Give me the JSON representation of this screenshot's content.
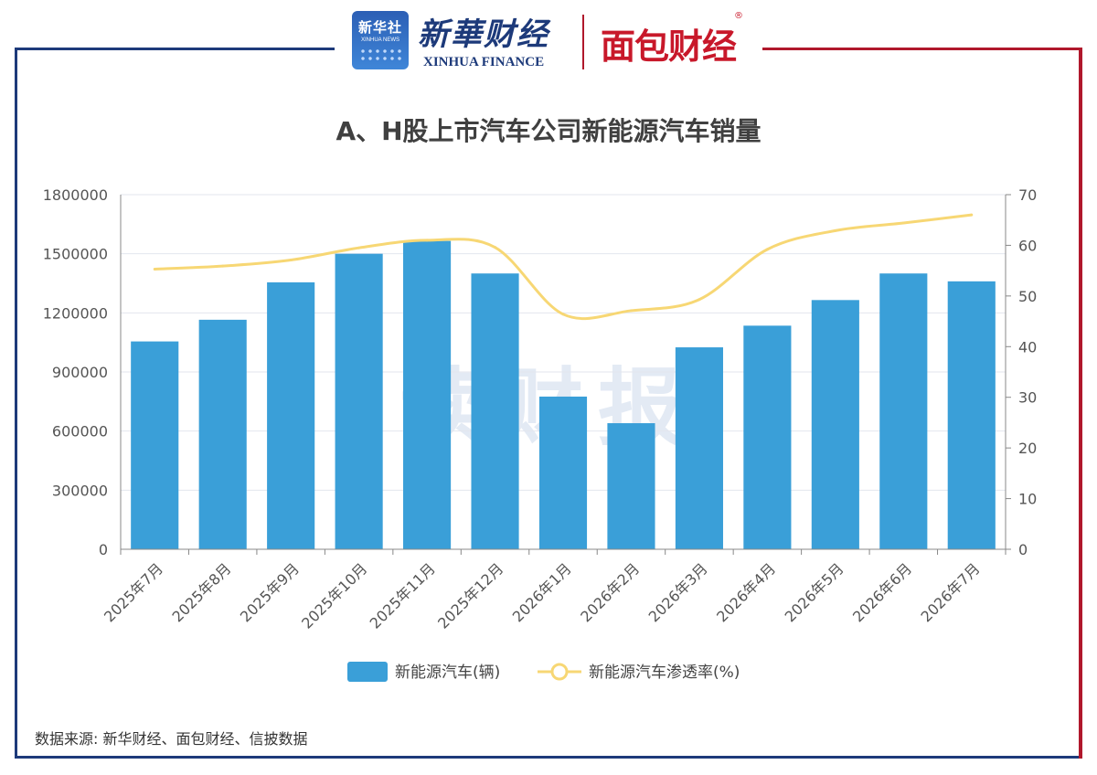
{
  "header": {
    "xinhua_badge_cn": "新华社",
    "xinhua_badge_en": "XINHUA NEWS",
    "xinhua_finance_cn": "新華财经",
    "xinhua_finance_en": "XINHUA FINANCE",
    "mianbao_logo": "面包财经",
    "registered_mark": "®"
  },
  "watermark": "读财报",
  "source": "数据来源: 新华财经、面包财经、信披数据",
  "colors": {
    "bar": "#3a9fd8",
    "line": "#f7d774",
    "frame_left": "#1d3a7a",
    "frame_right": "#b0182c"
  },
  "chart_data": {
    "type": "bar",
    "title": "A、H股上市汽车公司新能源汽车销量",
    "categories": [
      "2025年7月",
      "2025年8月",
      "2025年9月",
      "2025年10月",
      "2025年11月",
      "2025年12月",
      "2026年1月",
      "2026年2月",
      "2026年3月",
      "2026年4月",
      "2026年5月",
      "2026年6月",
      "2026年7月"
    ],
    "series": [
      {
        "name": "新能源汽车(辆)",
        "type": "bar",
        "axis": "left",
        "values": [
          1055000,
          1165000,
          1355000,
          1500000,
          1565000,
          1400000,
          775000,
          640000,
          1025000,
          1135000,
          1265000,
          1400000,
          1360000
        ]
      },
      {
        "name": "新能源汽车渗透率(%)",
        "type": "line",
        "axis": "right",
        "values": [
          55.3,
          55.9,
          57.1,
          59.5,
          61.0,
          59.6,
          46.4,
          47.1,
          49.3,
          59.2,
          62.9,
          64.4,
          66.0
        ]
      }
    ],
    "y_left": {
      "min": 0,
      "max": 1800000,
      "ticks": [
        "0",
        "300000",
        "600000",
        "900000",
        "1200000",
        "1500000",
        "1800000"
      ]
    },
    "y_right": {
      "min": 0,
      "max": 70,
      "ticks": [
        "0",
        "10",
        "20",
        "30",
        "40",
        "50",
        "60",
        "70"
      ]
    },
    "grid": true,
    "legend": "bottom-center"
  }
}
